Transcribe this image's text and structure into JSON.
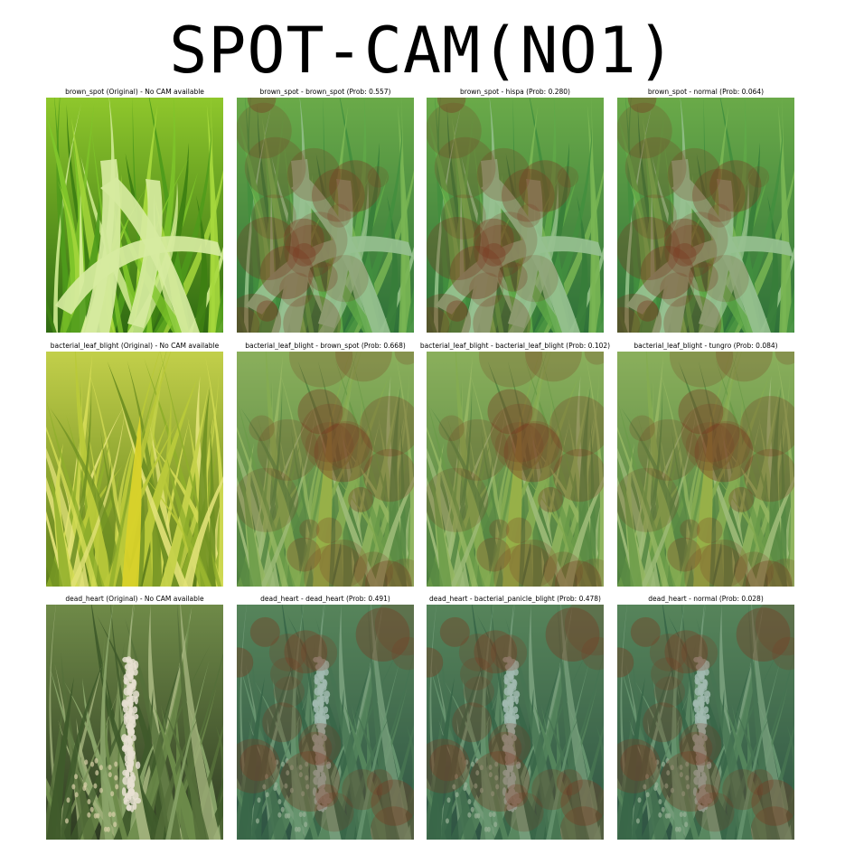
{
  "title": "SPOT-CAM(NO1)",
  "rows": [
    {
      "label": "brown_spot",
      "panels": [
        {
          "title": "brown_spot (Original) - No CAM available",
          "kind": "original"
        },
        {
          "title": "brown_spot - brown_spot (Prob: 0.557)",
          "kind": "cam"
        },
        {
          "title": "brown_spot - hispa (Prob: 0.280)",
          "kind": "cam"
        },
        {
          "title": "brown_spot - normal (Prob: 0.064)",
          "kind": "cam"
        }
      ]
    },
    {
      "label": "bacterial_leaf_blight",
      "panels": [
        {
          "title": "bacterial_leaf_blight (Original) - No CAM available",
          "kind": "original"
        },
        {
          "title": "bacterial_leaf_blight - brown_spot (Prob: 0.668)",
          "kind": "cam"
        },
        {
          "title": "bacterial_leaf_blight - bacterial_leaf_blight (Prob: 0.102)",
          "kind": "cam"
        },
        {
          "title": "bacterial_leaf_blight - tungro (Prob: 0.084)",
          "kind": "cam"
        }
      ]
    },
    {
      "label": "dead_heart",
      "panels": [
        {
          "title": "dead_heart (Original) - No CAM available",
          "kind": "original"
        },
        {
          "title": "dead_heart - dead_heart (Prob: 0.491)",
          "kind": "cam"
        },
        {
          "title": "dead_heart - bacterial_panicle_blight (Prob: 0.478)",
          "kind": "cam"
        },
        {
          "title": "dead_heart - normal (Prob: 0.028)",
          "kind": "cam"
        }
      ]
    }
  ],
  "colors": {
    "page_background": "#ffffff",
    "text": "#000000",
    "brown_spot_base": "#4f8e1c",
    "bacterial_leaf_blight_base": "#8fa52a",
    "dead_heart_base": "#4d6230",
    "cam_overlay_cool": "#2f7c7a",
    "cam_overlay_hot": "#7a3a22"
  }
}
